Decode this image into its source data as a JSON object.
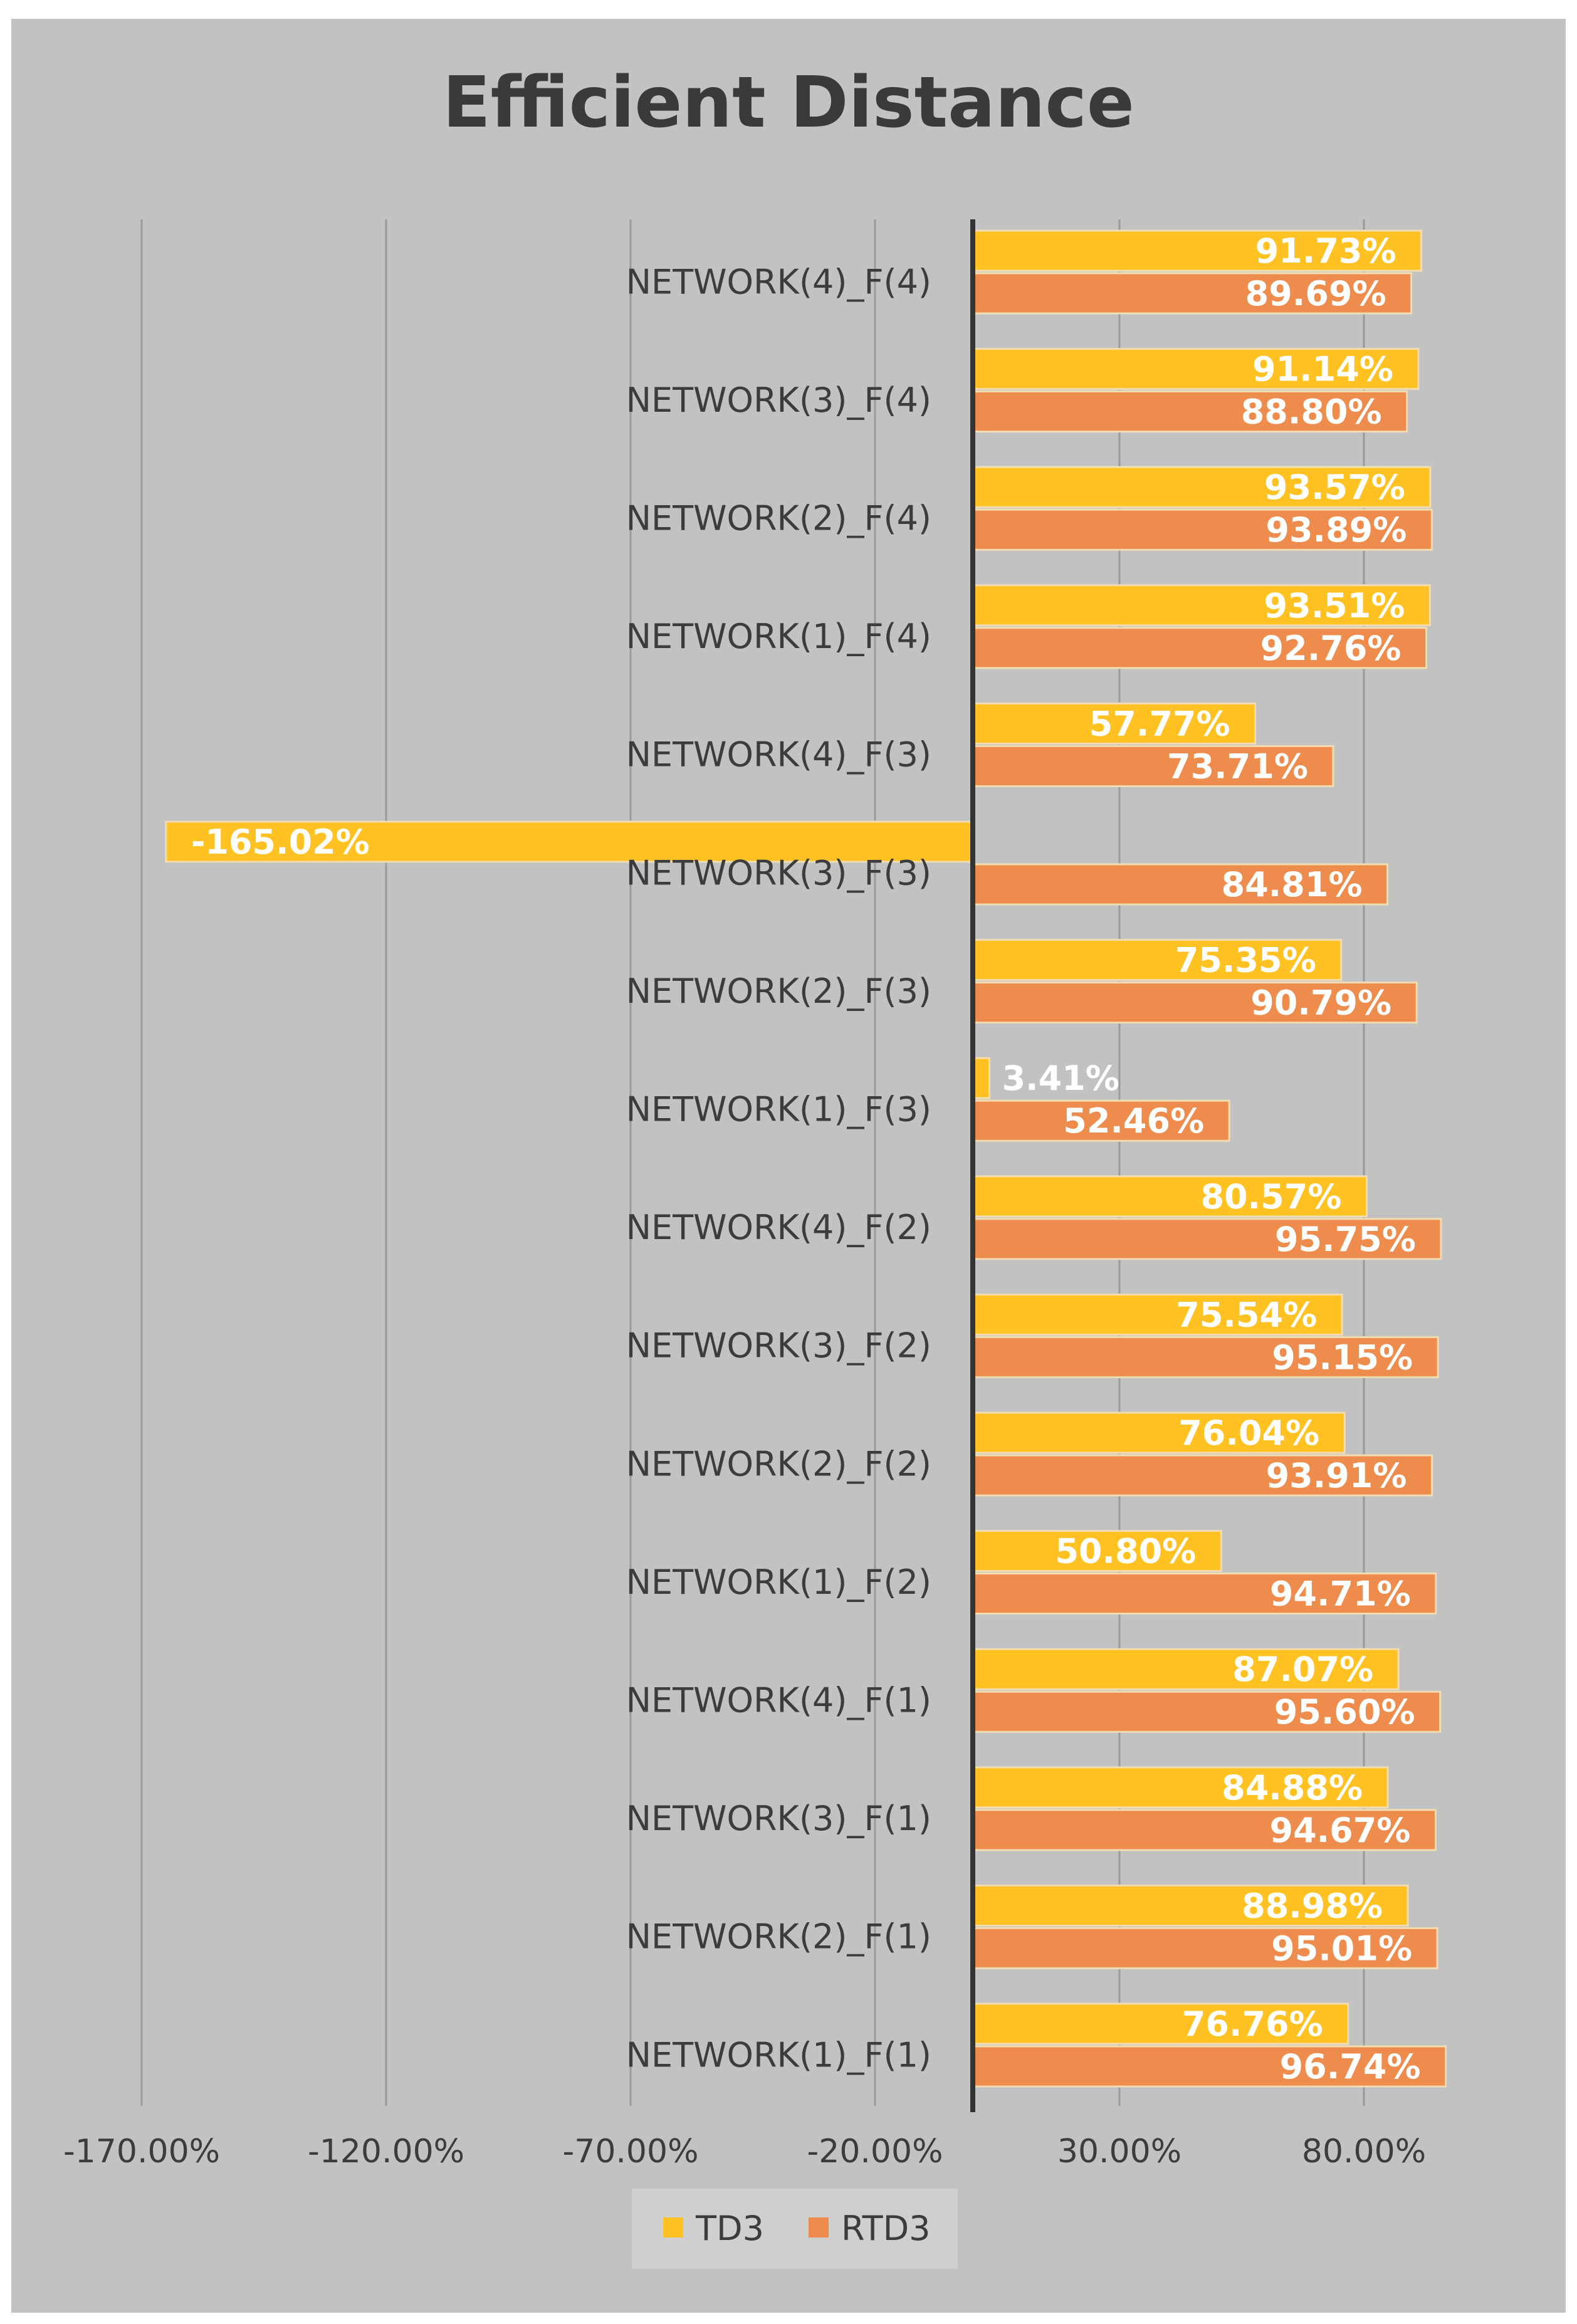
{
  "chart_data": {
    "type": "bar",
    "orientation": "horizontal",
    "title": "Efficient Distance",
    "xlabel": "",
    "ylabel": "",
    "xlim": [
      -170,
      100
    ],
    "x_ticks": [
      -170,
      -120,
      -70,
      -20,
      30,
      80
    ],
    "x_tick_labels": [
      "-170.00%",
      "-120.00%",
      "-70.00%",
      "-20.00%",
      "30.00%",
      "80.00%"
    ],
    "grid": "vertical",
    "legend_position": "bottom",
    "categories": [
      "NETWORK(4)_F(4)",
      "NETWORK(3)_F(4)",
      "NETWORK(2)_F(4)",
      "NETWORK(1)_F(4)",
      "NETWORK(4)_F(3)",
      "NETWORK(3)_F(3)",
      "NETWORK(2)_F(3)",
      "NETWORK(1)_F(3)",
      "NETWORK(4)_F(2)",
      "NETWORK(3)_F(2)",
      "NETWORK(2)_F(2)",
      "NETWORK(1)_F(2)",
      "NETWORK(4)_F(1)",
      "NETWORK(3)_F(1)",
      "NETWORK(2)_F(1)",
      "NETWORK(1)_F(1)"
    ],
    "series": [
      {
        "name": "TD3",
        "color": "#ffc222",
        "values": [
          91.73,
          91.14,
          93.57,
          93.51,
          57.77,
          -165.02,
          75.35,
          3.41,
          80.57,
          75.54,
          76.04,
          50.8,
          87.07,
          84.88,
          88.98,
          76.76
        ],
        "labels": [
          "91.73%",
          "91.14%",
          "93.57%",
          "93.51%",
          "57.77%",
          "-165.02%",
          "75.35%",
          "3.41%",
          "80.57%",
          "75.54%",
          "76.04%",
          "50.80%",
          "87.07%",
          "84.88%",
          "88.98%",
          "76.76%"
        ]
      },
      {
        "name": "RTD3",
        "color": "#ed8c4c",
        "values": [
          89.69,
          88.8,
          93.89,
          92.76,
          73.71,
          84.81,
          90.79,
          52.46,
          95.75,
          95.15,
          93.91,
          94.71,
          95.6,
          94.67,
          95.01,
          96.74
        ],
        "labels": [
          "89.69%",
          "88.80%",
          "93.89%",
          "92.76%",
          "73.71%",
          "84.81%",
          "90.79%",
          "52.46%",
          "95.75%",
          "95.15%",
          "93.91%",
          "94.71%",
          "95.60%",
          "94.67%",
          "95.01%",
          "96.74%"
        ]
      }
    ]
  }
}
